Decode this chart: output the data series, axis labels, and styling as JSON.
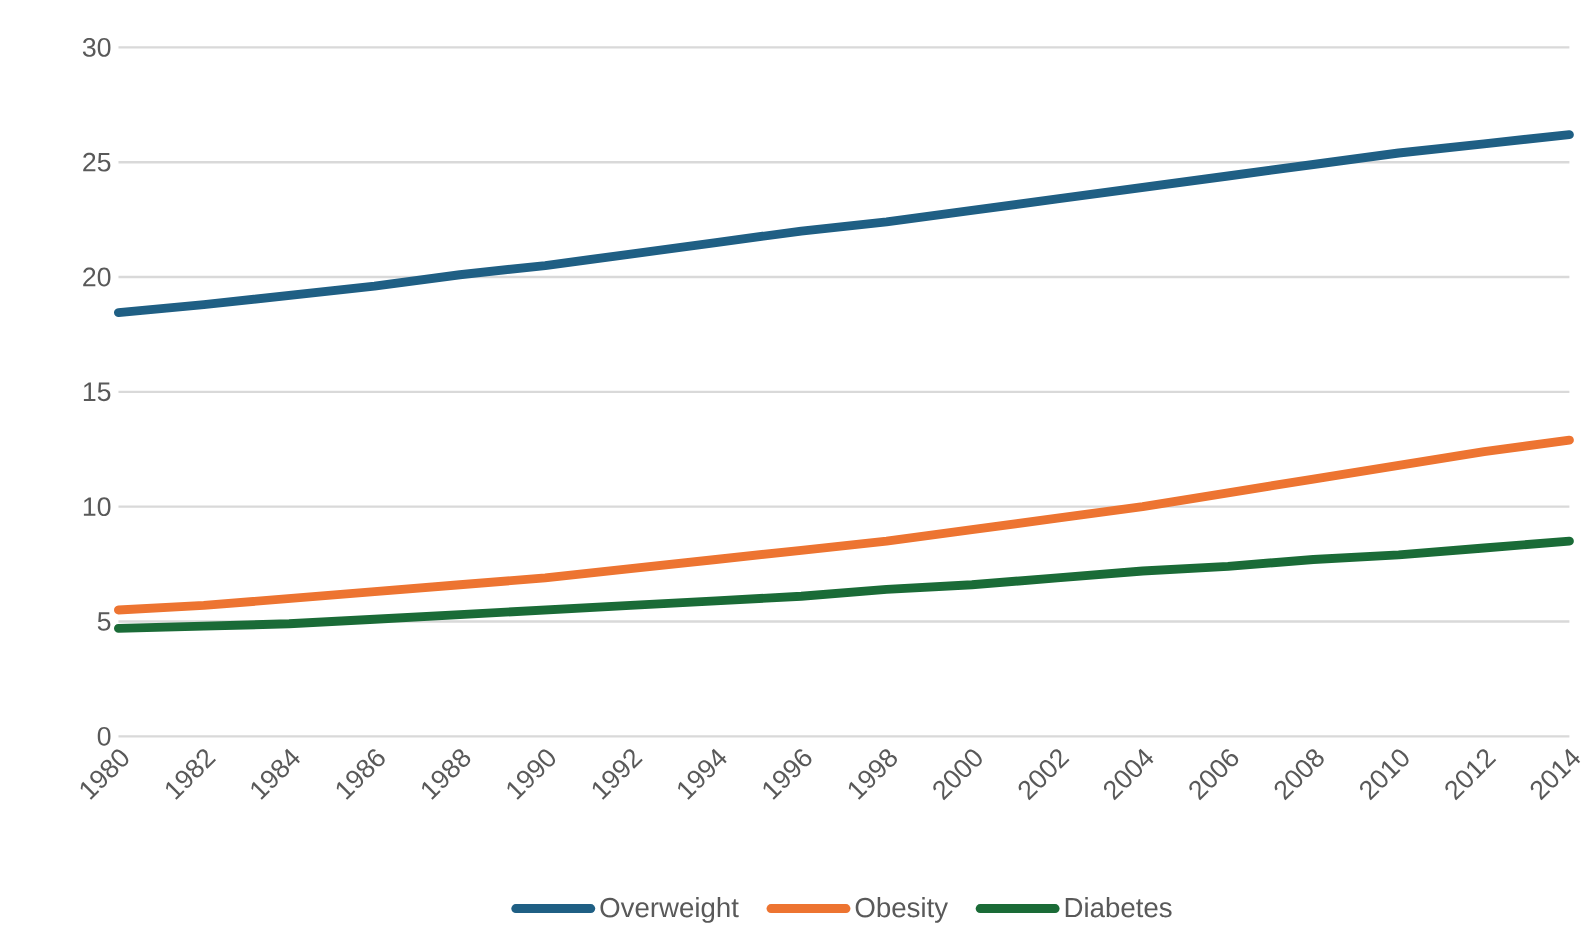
{
  "chart_data": {
    "type": "line",
    "x": [
      1980,
      1982,
      1984,
      1986,
      1988,
      1990,
      1992,
      1994,
      1996,
      1998,
      2000,
      2002,
      2004,
      2006,
      2008,
      2010,
      2012,
      2014
    ],
    "series": [
      {
        "name": "Overweight",
        "color": "#1f5f84",
        "values": [
          18.45,
          18.8,
          19.2,
          19.6,
          20.1,
          20.5,
          21.0,
          21.5,
          22.0,
          22.4,
          22.9,
          23.4,
          23.9,
          24.4,
          24.9,
          25.4,
          25.8,
          26.2
        ]
      },
      {
        "name": "Obesity",
        "color": "#ed7431",
        "values": [
          5.5,
          5.7,
          6.0,
          6.3,
          6.6,
          6.9,
          7.3,
          7.7,
          8.1,
          8.5,
          9.0,
          9.5,
          10.0,
          10.6,
          11.2,
          11.8,
          12.4,
          12.9
        ]
      },
      {
        "name": "Diabetes",
        "color": "#1a6b37",
        "values": [
          4.7,
          4.8,
          4.9,
          5.1,
          5.3,
          5.5,
          5.7,
          5.9,
          6.1,
          6.4,
          6.6,
          6.9,
          7.2,
          7.4,
          7.7,
          7.9,
          8.2,
          8.5
        ]
      }
    ],
    "xlim": [
      1980,
      2014
    ],
    "xticks": [
      1980,
      1982,
      1984,
      1986,
      1988,
      1990,
      1992,
      1994,
      1996,
      1998,
      2000,
      2002,
      2004,
      2006,
      2008,
      2010,
      2012,
      2014
    ],
    "ylim": [
      0,
      30
    ],
    "yticks": [
      0,
      5,
      10,
      15,
      20,
      25,
      30
    ],
    "grid": "y",
    "legend": "bottom",
    "marker": "none",
    "line_style": "solid"
  }
}
